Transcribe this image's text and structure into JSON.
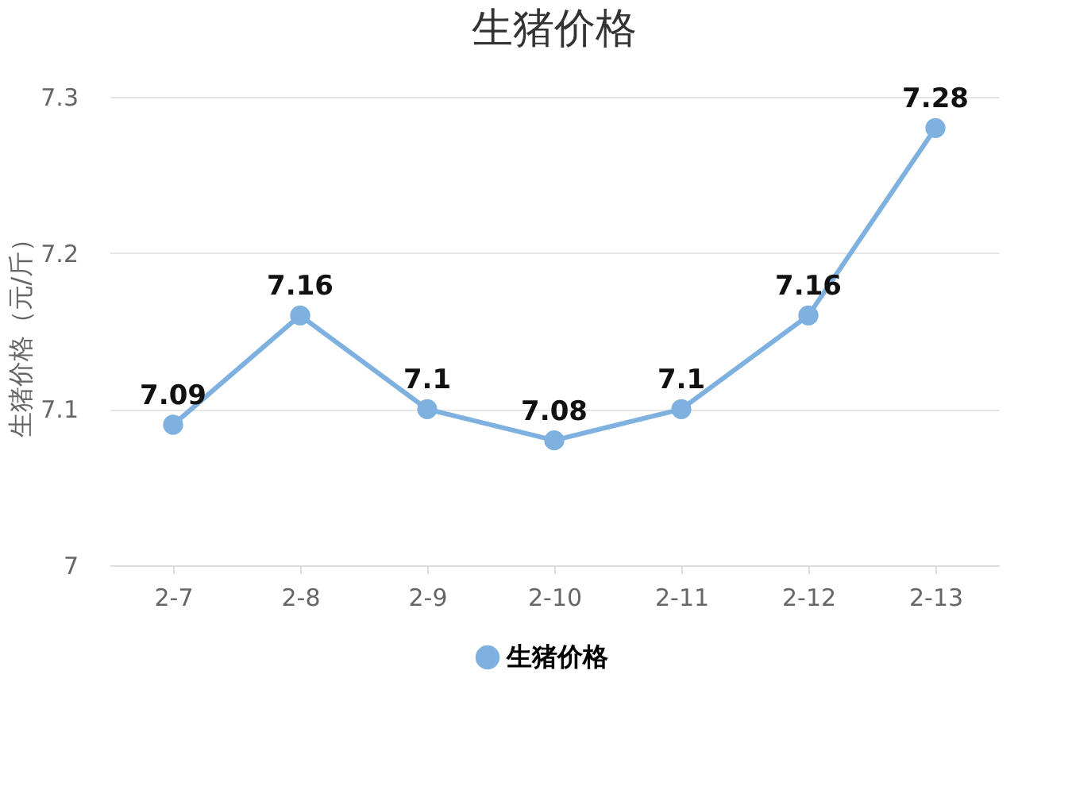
{
  "chart_data": {
    "type": "line",
    "title": "生猪价格",
    "ylabel": "生猪价格（元/斤）",
    "categories": [
      "2-7",
      "2-8",
      "2-9",
      "2-10",
      "2-11",
      "2-12",
      "2-13"
    ],
    "series": [
      {
        "name": "生猪价格",
        "color": "#7eb0e0",
        "values": [
          7.09,
          7.16,
          7.1,
          7.08,
          7.1,
          7.16,
          7.28
        ]
      }
    ],
    "ylim": [
      7,
      7.3
    ],
    "yticks": [
      7,
      7.1,
      7.2,
      7.3
    ],
    "grid": "y",
    "legend": "bottom",
    "marker": "circle",
    "line_style": "solid",
    "data_labels": true
  }
}
